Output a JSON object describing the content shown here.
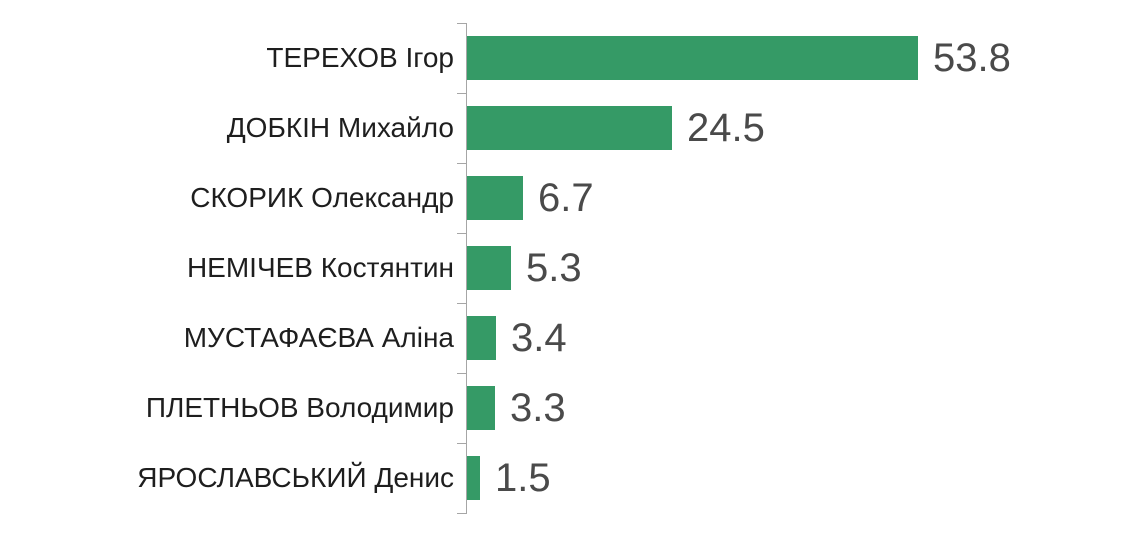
{
  "chart": {
    "background_color": "#ffffff",
    "bar_color": "#359a66",
    "axis_color": "#a6a6a6",
    "category_label_color": "#1e1e1e",
    "value_label_color": "#4a4a4a"
  },
  "chart_data": {
    "type": "bar",
    "orientation": "horizontal",
    "title": "",
    "xlabel": "",
    "ylabel": "",
    "categories": [
      "ТЕРЕХОВ Ігор",
      "ДОБКІН Михайло",
      "СКОРИК Олександр",
      "НЕМІЧЕВ Костянтин",
      "МУСТАФАЄВА Аліна",
      "ПЛЕТНЬОВ Володимир",
      "ЯРОСЛАВСЬКИЙ Денис"
    ],
    "values": [
      53.8,
      24.5,
      6.7,
      5.3,
      3.4,
      3.3,
      1.5
    ],
    "value_labels": [
      "53.8",
      "24.5",
      "6.7",
      "5.3",
      "3.4",
      "3.3",
      "1.5"
    ],
    "xlim": [
      0,
      53.8
    ],
    "grid": false,
    "legend": "none"
  }
}
